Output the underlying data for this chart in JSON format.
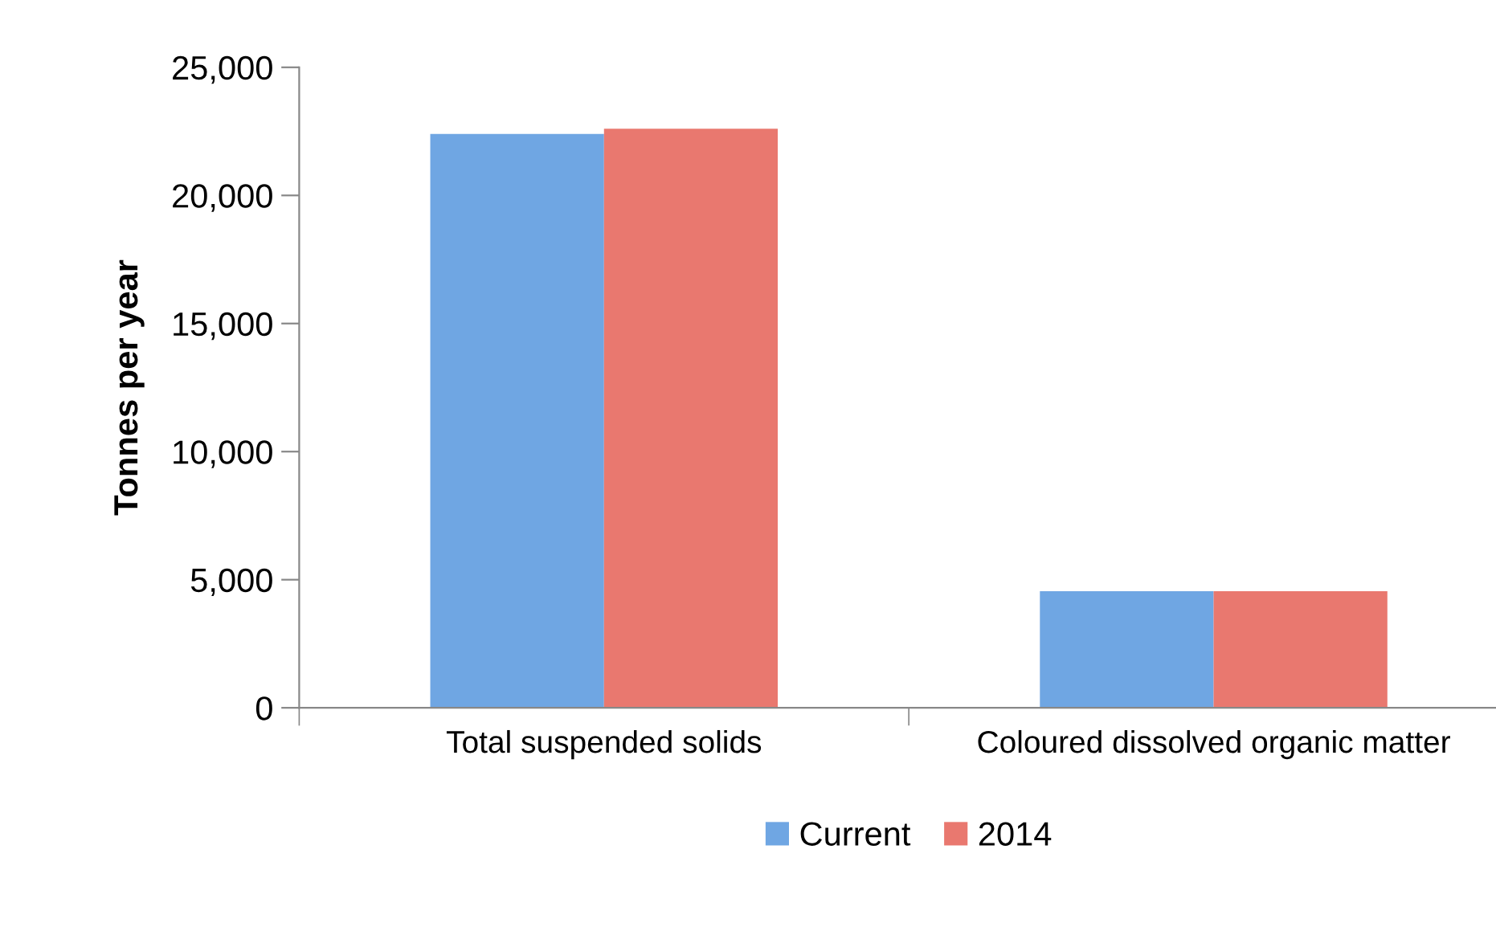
{
  "chart_data": {
    "type": "bar",
    "ylabel": "Tonnes per year",
    "categories": [
      "Total suspended solids",
      "Coloured dissolved organic matter"
    ],
    "series": [
      {
        "name": "Current",
        "color": "#6fa6e3",
        "values": [
          22400,
          4550
        ]
      },
      {
        "name": "2014",
        "color": "#e9786f",
        "values": [
          22600,
          4550
        ]
      }
    ],
    "ylim": [
      0,
      25000
    ],
    "yticks": [
      {
        "value": 0,
        "label": "0"
      },
      {
        "value": 5000,
        "label": "5,000"
      },
      {
        "value": 10000,
        "label": "10,000"
      },
      {
        "value": 15000,
        "label": "15,000"
      },
      {
        "value": 20000,
        "label": "20,000"
      },
      {
        "value": 25000,
        "label": "25,000"
      }
    ],
    "grid": false,
    "legend": "bottom"
  }
}
